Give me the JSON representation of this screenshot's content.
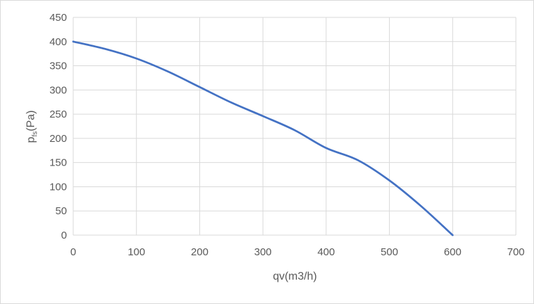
{
  "chart_data": {
    "type": "line",
    "title": "",
    "xlabel": "qv(m3/h)",
    "ylabel_main": "p",
    "ylabel_sub": "fs",
    "ylabel_unit": "(Pa)",
    "xlim": [
      0,
      700
    ],
    "ylim": [
      0,
      450
    ],
    "x_ticks": [
      0,
      100,
      200,
      300,
      400,
      500,
      600,
      700
    ],
    "y_ticks": [
      0,
      50,
      100,
      150,
      200,
      250,
      300,
      350,
      400,
      450
    ],
    "grid": true,
    "legend": "none",
    "series": [
      {
        "color": "#4472c4",
        "x": [
          0,
          50,
          100,
          150,
          200,
          250,
          300,
          350,
          400,
          450,
          500,
          550,
          600
        ],
        "y": [
          400,
          385,
          365,
          338,
          306,
          274,
          246,
          217,
          180,
          155,
          113,
          60,
          0
        ]
      }
    ]
  }
}
